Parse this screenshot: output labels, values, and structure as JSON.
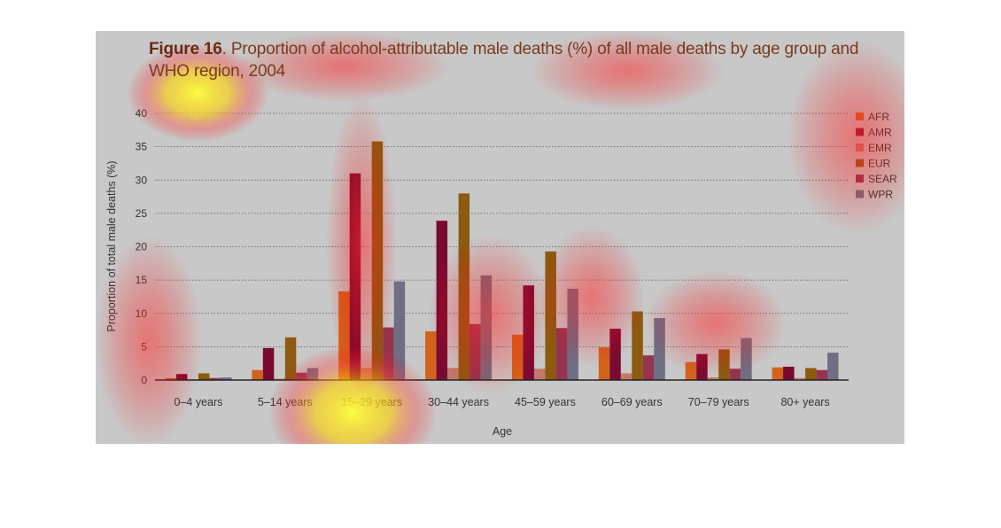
{
  "title": {
    "label": "Figure 16",
    "text": ". Proportion of alcohol-attributable male deaths (%) of all male deaths by age group and WHO region, 2004"
  },
  "chart_data": {
    "type": "bar",
    "title": "Figure 16. Proportion of alcohol-attributable male deaths (%) of all male deaths by age group and WHO region, 2004",
    "xlabel": "Age",
    "ylabel": "Proportion of total male deaths (%)",
    "ylim": [
      0,
      40
    ],
    "yticks": [
      0,
      5,
      10,
      15,
      20,
      25,
      30,
      35,
      40
    ],
    "grid": true,
    "legend_position": "top-right",
    "categories": [
      "0–4 years",
      "5–14 years",
      "15–29 years",
      "30–44 years",
      "45–59 years",
      "60–69 years",
      "70–79 years",
      "80+ years"
    ],
    "series": [
      {
        "name": "AFR",
        "color": "#d2631c",
        "values": [
          0.3,
          1.5,
          13.3,
          7.3,
          6.8,
          4.9,
          2.7,
          1.9
        ]
      },
      {
        "name": "AMR",
        "color": "#7a0a32",
        "values": [
          0.9,
          4.8,
          31.0,
          23.9,
          14.2,
          7.7,
          3.9,
          2.0
        ]
      },
      {
        "name": "EMR",
        "color": "#c2786a",
        "values": [
          0.1,
          0.2,
          1.8,
          1.8,
          1.7,
          1.0,
          0.4,
          0.3
        ]
      },
      {
        "name": "EUR",
        "color": "#8c5a10",
        "values": [
          1.0,
          6.4,
          35.8,
          28.0,
          19.3,
          10.3,
          4.6,
          1.8
        ]
      },
      {
        "name": "SEAR",
        "color": "#943450",
        "values": [
          0.3,
          1.1,
          7.9,
          8.4,
          7.8,
          3.7,
          1.7,
          1.5
        ]
      },
      {
        "name": "WPR",
        "color": "#6e6e84",
        "values": [
          0.4,
          1.8,
          14.8,
          15.7,
          13.7,
          9.3,
          6.3,
          4.1
        ]
      }
    ]
  }
}
